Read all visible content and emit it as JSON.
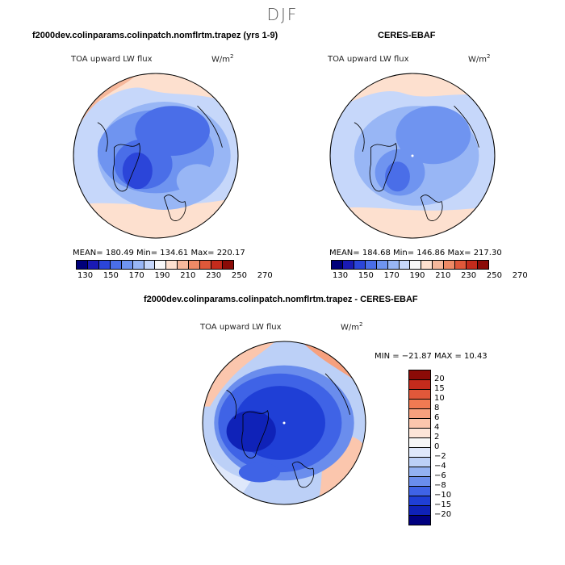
{
  "season": "DJF",
  "panel_left": {
    "title": "f2000dev.colinparams.colinpatch.nomflrtm.trapez (yrs 1-9)",
    "variable": "TOA upward LW flux",
    "units": "W/m",
    "units_sup": "2",
    "stats": "MEAN= 180.49  Min= 134.61  Max= 220.17"
  },
  "panel_right": {
    "title": "CERES-EBAF",
    "variable": "TOA upward LW flux",
    "units": "W/m",
    "units_sup": "2",
    "stats": "MEAN= 184.68  Min= 146.86  Max= 217.30"
  },
  "panel_diff": {
    "title": "f2000dev.colinparams.colinpatch.nomflrtm.trapez - CERES-EBAF",
    "variable": "TOA upward LW flux",
    "units": "W/m",
    "units_sup": "2",
    "minmax": "MIN = −21.87 MAX =  10.43"
  },
  "colorbar_abs": {
    "colors": [
      "#00007a",
      "#1a1ab5",
      "#2b45d9",
      "#4a6ee8",
      "#6f94f0",
      "#98b6f5",
      "#c6d7fa",
      "#f7f7f7",
      "#fde0cf",
      "#f6b89c",
      "#ee8a66",
      "#e0583a",
      "#c42b1c",
      "#8b0b07"
    ],
    "labels": [
      "130",
      "150",
      "170",
      "190",
      "210",
      "230",
      "250",
      "270"
    ]
  },
  "colorbar_diff": {
    "colors": [
      "#8b0b07",
      "#c42b1c",
      "#e0583a",
      "#f07a52",
      "#f6a07e",
      "#fbc6ad",
      "#fde5d8",
      "#f7f7f7",
      "#dfe8fb",
      "#bcd0f7",
      "#93b1f2",
      "#6a8ded",
      "#3f63e6",
      "#1f3fd6",
      "#0f22b8",
      "#000080"
    ],
    "labels": [
      "20",
      "15",
      "10",
      "8",
      "6",
      "4",
      "2",
      "0",
      "−2",
      "−4",
      "−6",
      "−8",
      "−10",
      "−15",
      "−20"
    ]
  }
}
